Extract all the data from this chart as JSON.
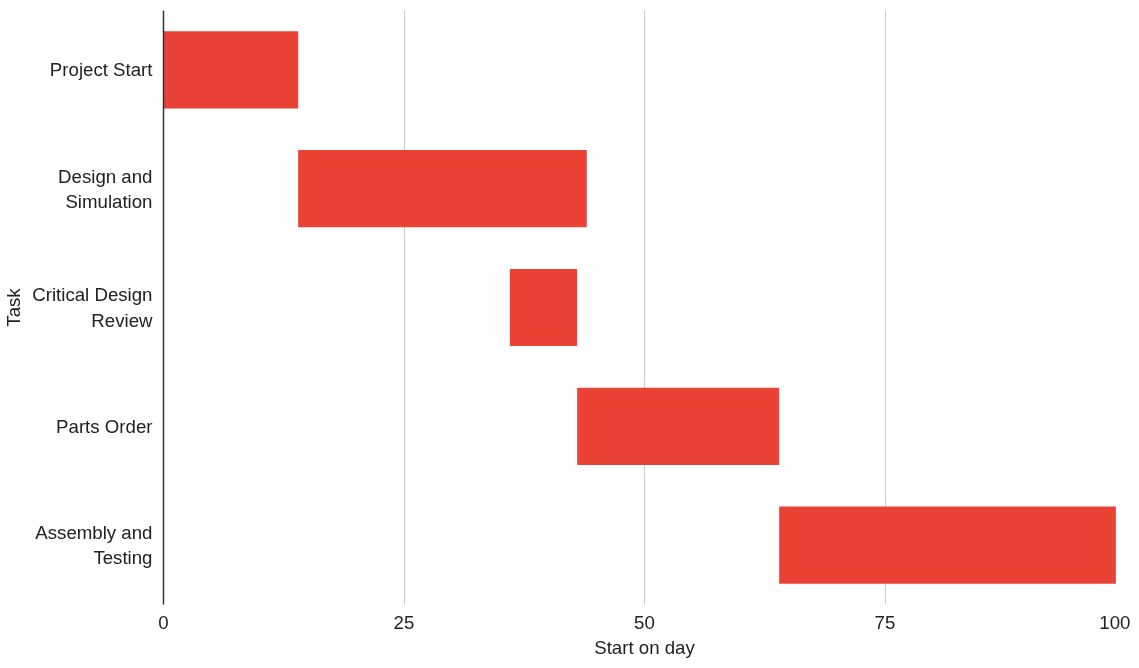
{
  "chart_data": {
    "type": "bar",
    "orientation": "horizontal",
    "xlabel": "Start on day",
    "ylabel": "Task",
    "categories": [
      "Project Start",
      "Design and Simulation",
      "Critical Design Review",
      "Parts Order",
      "Assembly and Testing"
    ],
    "base": [
      0,
      14,
      36,
      43,
      64
    ],
    "values": [
      14,
      30,
      7,
      21,
      35
    ],
    "color": "#ea4335",
    "xlim": [
      0,
      100
    ],
    "xticks": [
      0,
      25,
      50,
      75,
      100
    ],
    "grid": "x"
  }
}
